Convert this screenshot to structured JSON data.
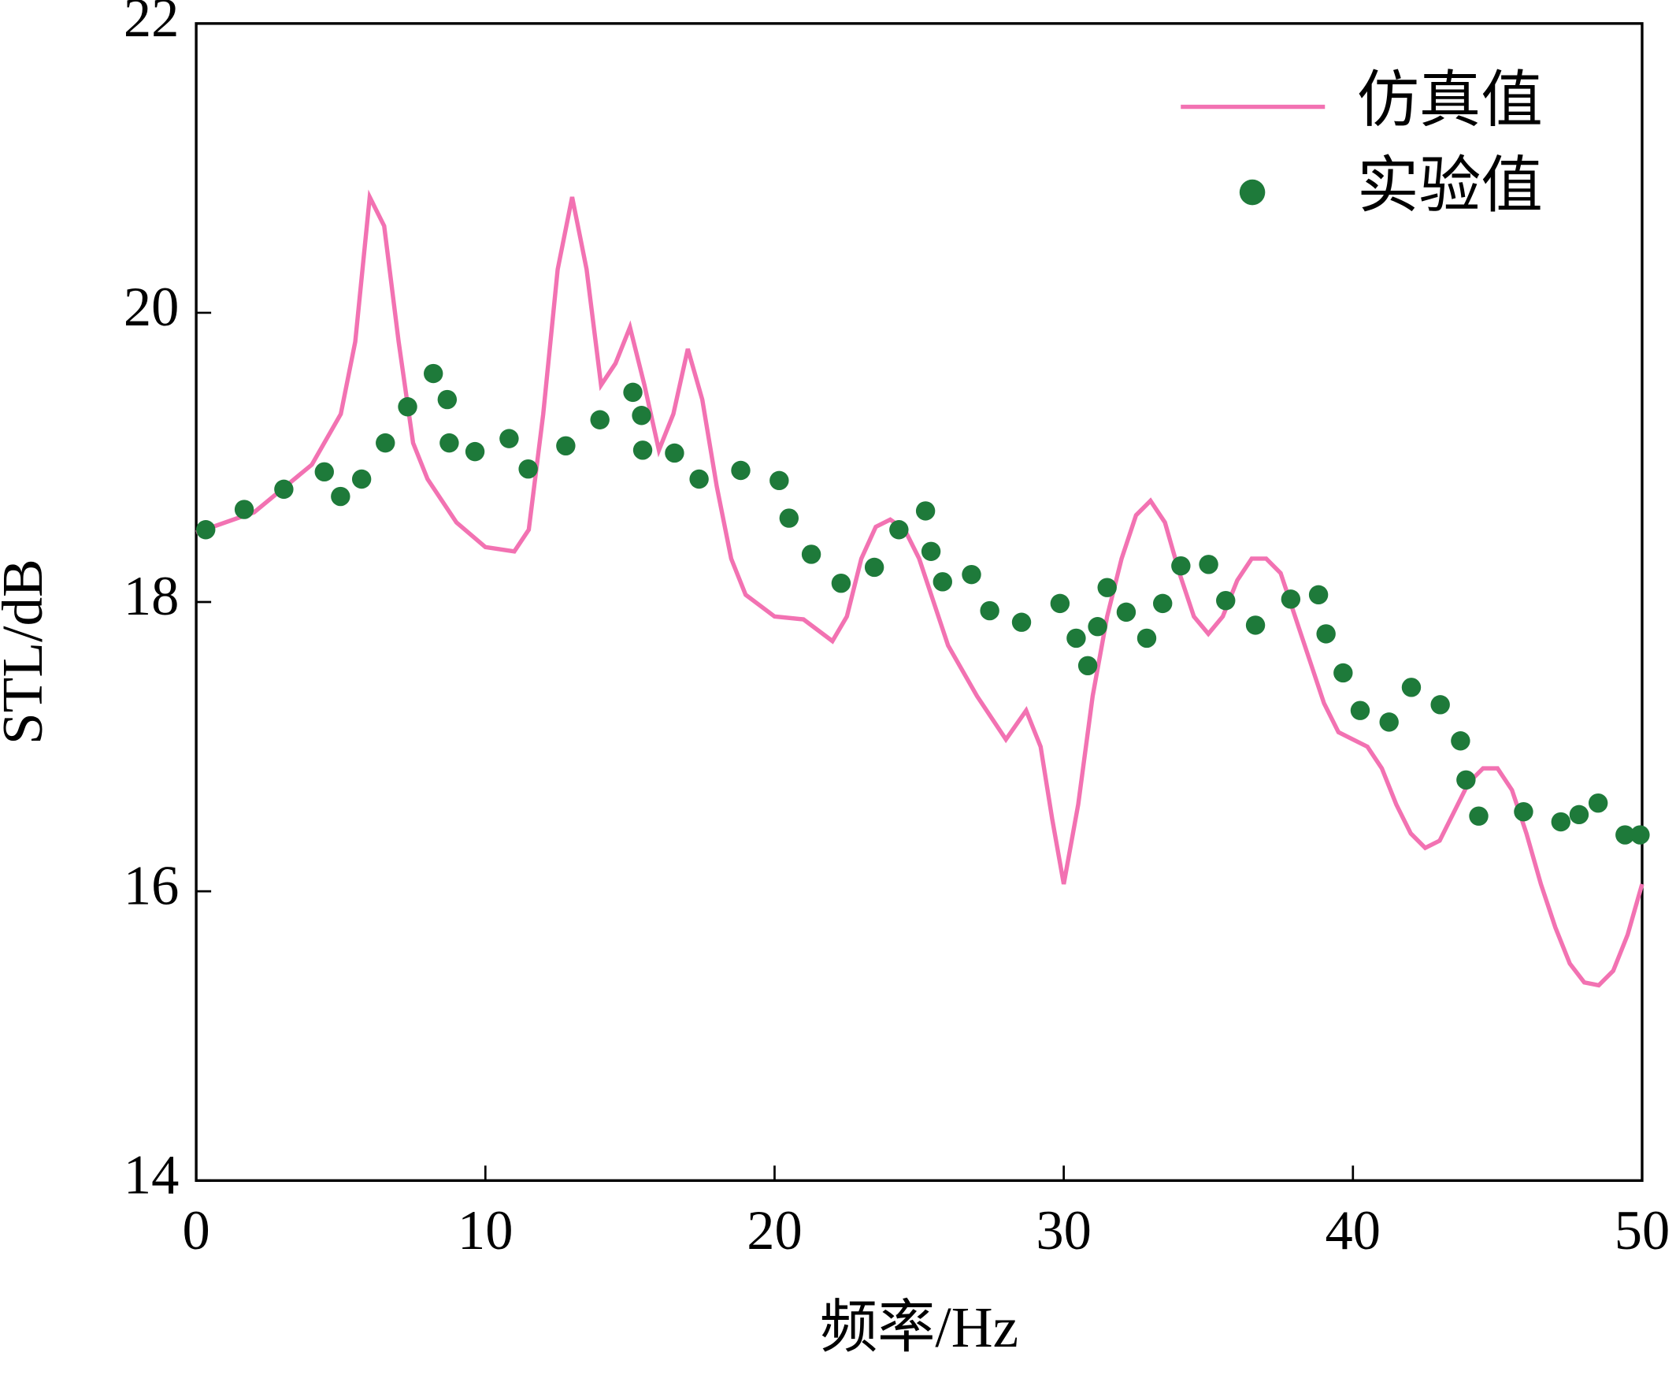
{
  "chart_data": {
    "type": "line",
    "xlabel": "频率/Hz",
    "ylabel": "STL/dB",
    "xlim": [
      0,
      50
    ],
    "ylim": [
      14,
      22
    ],
    "xticks": [
      0,
      10,
      20,
      30,
      40,
      50
    ],
    "yticks": [
      14,
      16,
      18,
      20,
      22
    ],
    "legend": "upper right",
    "series": [
      {
        "name": "仿真值",
        "type": "line",
        "color": "#f272b2",
        "x": [
          0,
          2,
          4,
          5,
          5.5,
          6,
          6.5,
          7,
          7.5,
          8,
          9,
          10,
          11,
          11.5,
          12,
          12.5,
          13,
          13.5,
          14,
          14.5,
          15,
          15.5,
          16,
          16.5,
          17,
          17.5,
          18,
          18.5,
          19,
          20,
          21,
          22,
          22.5,
          23,
          23.5,
          24,
          24.5,
          25,
          25.5,
          26,
          27,
          28,
          28.7,
          29.2,
          29.6,
          30,
          30.5,
          31,
          31.5,
          32,
          32.5,
          33,
          33.5,
          34,
          34.5,
          35,
          35.5,
          36,
          36.5,
          37,
          37.5,
          38,
          38.5,
          39,
          39.5,
          40,
          40.5,
          41,
          41.5,
          42,
          42.5,
          43,
          43.5,
          44,
          44.5,
          45,
          45.5,
          46,
          46.5,
          47,
          47.5,
          48,
          48.5,
          49,
          49.5,
          50
        ],
        "values": [
          18.48,
          18.62,
          18.95,
          19.3,
          19.8,
          20.8,
          20.6,
          19.8,
          19.1,
          18.85,
          18.55,
          18.38,
          18.35,
          18.5,
          19.3,
          20.3,
          20.8,
          20.3,
          19.5,
          19.65,
          19.9,
          19.5,
          19.05,
          19.3,
          19.75,
          19.4,
          18.8,
          18.3,
          18.05,
          17.9,
          17.88,
          17.73,
          17.9,
          18.3,
          18.52,
          18.57,
          18.5,
          18.3,
          18.0,
          17.7,
          17.35,
          17.05,
          17.25,
          17.0,
          16.5,
          16.05,
          16.6,
          17.35,
          17.9,
          18.3,
          18.6,
          18.7,
          18.55,
          18.2,
          17.9,
          17.78,
          17.9,
          18.15,
          18.3,
          18.3,
          18.2,
          17.9,
          17.6,
          17.3,
          17.1,
          17.05,
          17.0,
          16.85,
          16.6,
          16.4,
          16.3,
          16.35,
          16.55,
          16.75,
          16.85,
          16.85,
          16.7,
          16.4,
          16.05,
          15.75,
          15.5,
          15.37,
          15.35,
          15.45,
          15.7,
          16.05
        ]
      },
      {
        "name": "实验值",
        "type": "scatter",
        "color": "#1e7a3a",
        "x": [
          0.33,
          1.66,
          3.03,
          4.43,
          4.99,
          5.72,
          6.54,
          7.31,
          8.2,
          8.68,
          8.75,
          9.64,
          10.82,
          11.48,
          12.78,
          13.96,
          15.1,
          15.4,
          15.44,
          16.54,
          17.39,
          18.83,
          20.16,
          20.5,
          21.27,
          22.3,
          23.45,
          24.3,
          25.22,
          25.41,
          25.81,
          26.81,
          27.44,
          28.54,
          29.87,
          30.43,
          30.83,
          31.17,
          31.5,
          32.16,
          32.87,
          33.42,
          34.05,
          35.01,
          35.6,
          36.63,
          37.85,
          38.81,
          39.07,
          39.66,
          40.25,
          41.25,
          42.02,
          43.02,
          43.72,
          43.91,
          44.35,
          45.9,
          47.19,
          47.82,
          48.48,
          49.41,
          49.93
        ],
        "values": [
          18.5,
          18.64,
          18.78,
          18.9,
          18.73,
          18.85,
          19.1,
          19.35,
          19.58,
          19.4,
          19.1,
          19.04,
          19.13,
          18.92,
          19.08,
          19.26,
          19.45,
          19.29,
          19.05,
          19.03,
          18.85,
          18.91,
          18.84,
          18.58,
          18.33,
          18.13,
          18.24,
          18.5,
          18.63,
          18.35,
          18.14,
          18.19,
          17.94,
          17.86,
          17.99,
          17.75,
          17.56,
          17.83,
          18.1,
          17.93,
          17.75,
          17.99,
          18.25,
          18.26,
          18.01,
          17.84,
          18.02,
          18.05,
          17.78,
          17.51,
          17.25,
          17.17,
          17.41,
          17.29,
          17.04,
          16.77,
          16.52,
          16.55,
          16.48,
          16.53,
          16.61,
          16.39,
          16.39
        ]
      }
    ]
  }
}
